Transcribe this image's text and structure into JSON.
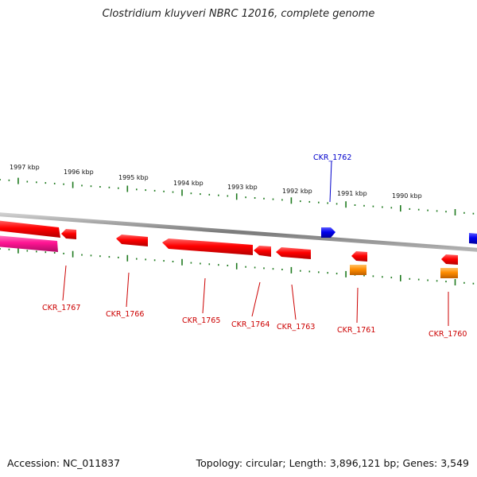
{
  "title": "Clostridium kluyveri NBRC 12016, complete genome",
  "footer": {
    "accession": "Accession: NC_011837",
    "topology": "Topology: circular; Length: 3,896,121 bp; Genes: 3,549"
  },
  "colors": {
    "backbone": "#8c8c8c",
    "tick": "#1f7a1f",
    "gene_red": "#ff0000",
    "gene_blue": "#0000ee",
    "gene_orange": "#ff8c00",
    "gene_magenta": "#ff1493",
    "label_red": "#cc0000",
    "label_blue": "#0000cc"
  },
  "kbp_labels": [
    "1997 kbp",
    "1996 kbp",
    "1995 kbp",
    "1994 kbp",
    "1993 kbp",
    "1992 kbp",
    "1991 kbp",
    "1990 kbp"
  ],
  "gene_labels": [
    {
      "name": "CKR_1762",
      "color": "blue"
    },
    {
      "name": "CKR_1767",
      "color": "red"
    },
    {
      "name": "CKR_1766",
      "color": "red"
    },
    {
      "name": "CKR_1765",
      "color": "red"
    },
    {
      "name": "CKR_1764",
      "color": "red"
    },
    {
      "name": "CKR_1763",
      "color": "red"
    },
    {
      "name": "CKR_1761",
      "color": "red"
    },
    {
      "name": "CKR_1760",
      "color": "red"
    }
  ]
}
